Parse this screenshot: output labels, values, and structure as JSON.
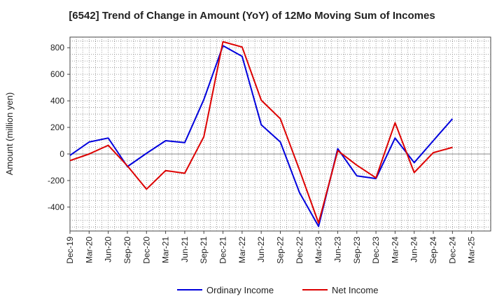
{
  "chart_data": {
    "type": "line",
    "title": "[6542]  Trend of Change in Amount (YoY) of 12Mo Moving Sum of Incomes",
    "xlabel": "",
    "ylabel": "Amount (million yen)",
    "ylim": [
      -580,
      880
    ],
    "yticks": [
      -400,
      -200,
      0,
      200,
      400,
      600,
      800
    ],
    "grid": true,
    "legend_position": "bottom-center",
    "categories": [
      "Dec-19",
      "Mar-20",
      "Jun-20",
      "Sep-20",
      "Dec-20",
      "Mar-21",
      "Jun-21",
      "Sep-21",
      "Dec-21",
      "Mar-22",
      "Jun-22",
      "Sep-22",
      "Dec-22",
      "Mar-23",
      "Jun-23",
      "Sep-23",
      "Dec-23",
      "Mar-24",
      "Jun-24",
      "Sep-24",
      "Dec-24",
      "Mar-25"
    ],
    "series": [
      {
        "name": "Ordinary Income",
        "color": "#0000dd",
        "values": [
          -10,
          90,
          120,
          -95,
          5,
          100,
          85,
          410,
          815,
          735,
          220,
          90,
          -290,
          -545,
          40,
          -165,
          -185,
          120,
          -65,
          100,
          265,
          null
        ]
      },
      {
        "name": "Net Income",
        "color": "#dd0000",
        "values": [
          -50,
          0,
          65,
          -90,
          -265,
          -125,
          -145,
          130,
          845,
          805,
          405,
          265,
          -120,
          -520,
          25,
          -85,
          -180,
          235,
          -140,
          10,
          50,
          null
        ]
      }
    ]
  }
}
